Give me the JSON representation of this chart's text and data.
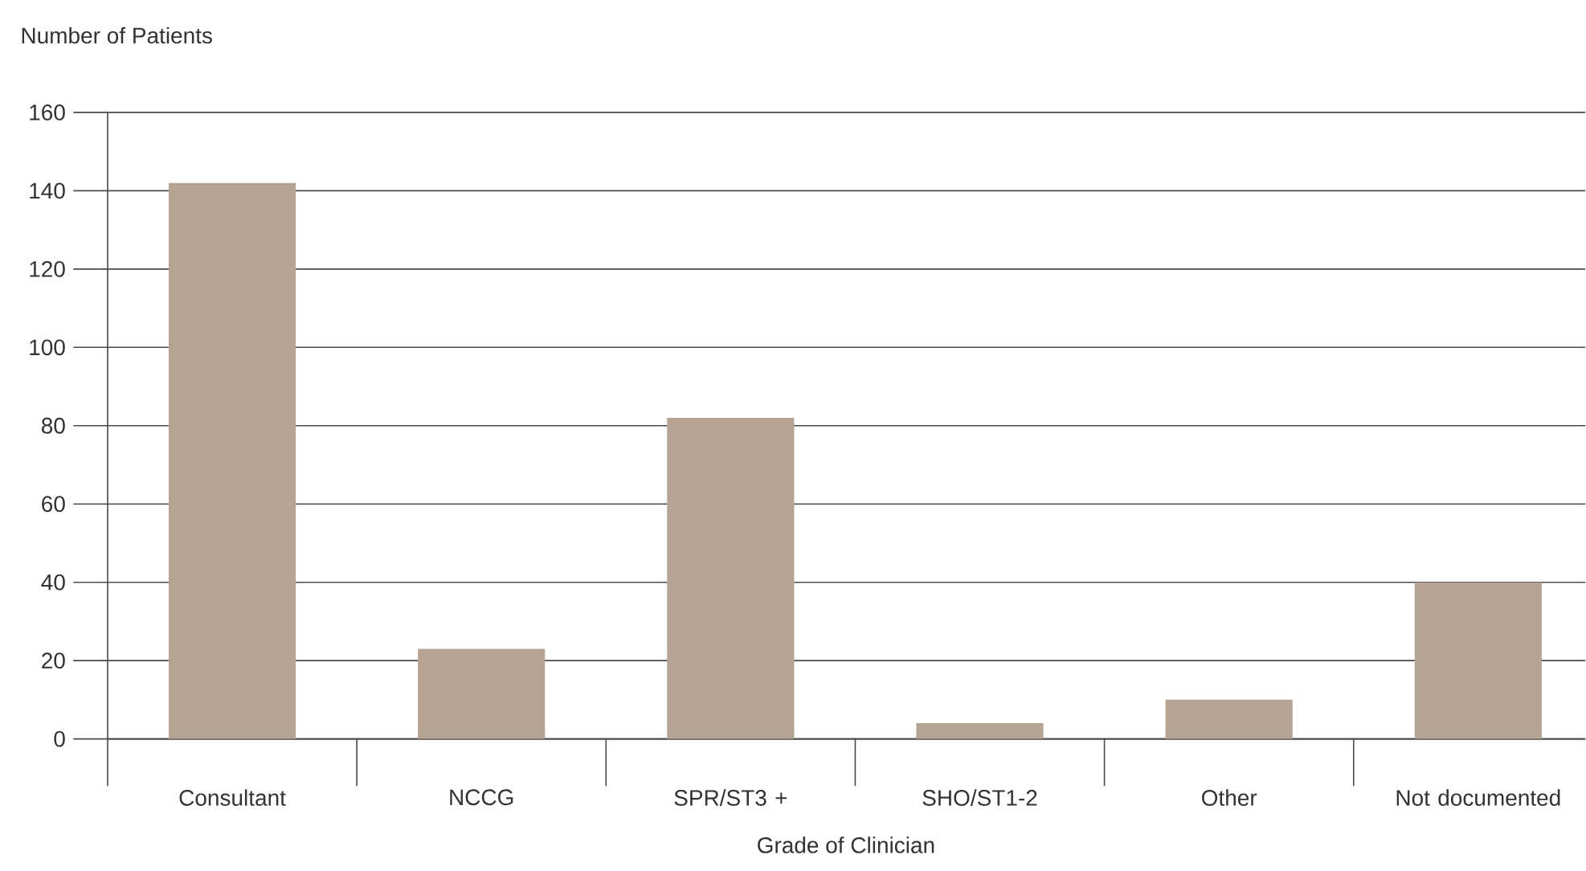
{
  "chart_data": {
    "type": "bar",
    "xlabel": "Grade of Clinician",
    "ylabel": "Number of Patients",
    "categories": [
      "Consultant",
      "NCCG",
      "SPR/ST3 +",
      "SHO/ST1-2",
      "Other",
      "Not documented"
    ],
    "values": [
      142,
      23,
      82,
      4,
      10,
      40
    ],
    "color": "#b5a394",
    "ylim": [
      0,
      160
    ],
    "yticks": [
      0,
      20,
      40,
      60,
      80,
      100,
      120,
      140,
      160
    ],
    "grid": "y"
  }
}
